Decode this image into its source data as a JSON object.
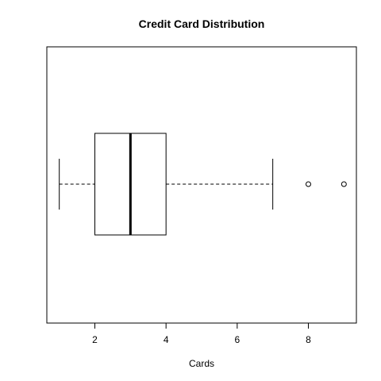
{
  "chart_data": {
    "type": "boxplot",
    "orientation": "horizontal",
    "title": "Credit Card Distribution",
    "xlabel": "Cards",
    "ylabel": "",
    "xlim": [
      0.65,
      9.35
    ],
    "xticks": [
      2,
      4,
      6,
      8
    ],
    "box": {
      "whisker_low": 1,
      "q1": 2,
      "median": 3,
      "q3": 4,
      "whisker_high": 7,
      "outliers": [
        8,
        9
      ]
    },
    "grid": false
  }
}
